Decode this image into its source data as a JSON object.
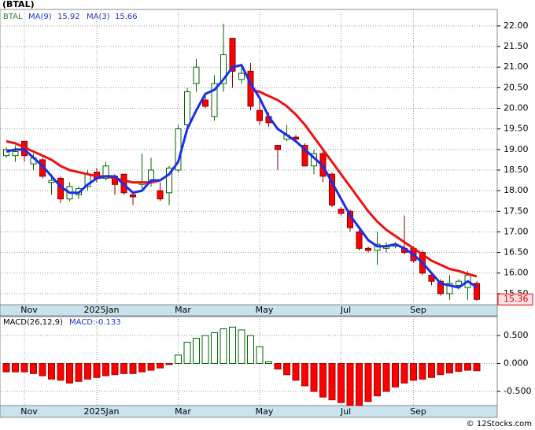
{
  "chart_data": [
    {
      "type": "candlestick",
      "title": "(BTAL)",
      "symbol": "BTAL",
      "categories": [
        null,
        null,
        "Nov",
        null,
        null,
        null,
        null,
        null,
        null,
        null,
        "2025Jan",
        null,
        null,
        null,
        null,
        null,
        null,
        null,
        null,
        "Mar",
        null,
        null,
        null,
        null,
        null,
        null,
        null,
        null,
        "May",
        null,
        null,
        null,
        null,
        null,
        null,
        null,
        null,
        "Jul",
        null,
        null,
        null,
        null,
        null,
        null,
        null,
        "Sep",
        null,
        null,
        null,
        null,
        null,
        null,
        null
      ],
      "open": [
        18.85,
        18.85,
        19.2,
        18.65,
        18.75,
        18.2,
        18.3,
        17.8,
        17.9,
        18.1,
        18.45,
        18.3,
        18.35,
        18.4,
        17.9,
        18.15,
        18.2,
        18.0,
        17.95,
        18.5,
        19.6,
        20.6,
        20.2,
        19.8,
        20.6,
        21.7,
        20.7,
        20.9,
        19.95,
        19.8,
        19.1,
        19.25,
        19.3,
        19.1,
        18.6,
        18.9,
        18.4,
        17.55,
        17.5,
        17.0,
        16.6,
        16.55,
        16.6,
        16.65,
        16.6,
        16.6,
        16.5,
        15.95,
        15.8,
        15.5,
        15.7,
        15.65,
        15.75
      ],
      "high": [
        19.05,
        19.1,
        19.2,
        18.9,
        18.8,
        18.4,
        18.35,
        18.2,
        18.1,
        18.5,
        18.55,
        18.7,
        18.4,
        18.4,
        17.95,
        18.9,
        18.8,
        18.2,
        18.6,
        19.6,
        20.5,
        21.2,
        20.3,
        20.8,
        22.05,
        21.7,
        21.0,
        21.1,
        20.2,
        19.9,
        19.1,
        19.6,
        19.35,
        19.15,
        19.0,
        18.95,
        18.45,
        17.6,
        17.55,
        17.05,
        16.65,
        17.0,
        16.75,
        16.75,
        17.4,
        16.65,
        16.55,
        16.0,
        15.85,
        15.95,
        15.85,
        16.05,
        15.8
      ],
      "low": [
        18.8,
        18.7,
        18.7,
        18.5,
        18.3,
        17.9,
        17.7,
        17.75,
        17.8,
        18.0,
        18.2,
        18.25,
        17.9,
        17.9,
        17.65,
        18.05,
        18.1,
        17.75,
        17.65,
        18.45,
        19.5,
        20.4,
        20.0,
        19.7,
        20.4,
        20.5,
        20.6,
        19.95,
        19.6,
        19.55,
        18.5,
        19.2,
        19.2,
        18.6,
        18.4,
        18.2,
        17.6,
        17.4,
        17.0,
        16.55,
        16.5,
        16.2,
        16.5,
        16.6,
        16.45,
        16.25,
        15.95,
        15.7,
        15.45,
        15.35,
        15.6,
        15.35,
        15.33
      ],
      "close": [
        19.0,
        18.95,
        18.85,
        18.8,
        18.35,
        18.25,
        17.8,
        18.1,
        18.05,
        18.4,
        18.3,
        18.6,
        18.15,
        17.95,
        17.85,
        18.2,
        18.5,
        17.8,
        18.55,
        19.5,
        20.4,
        21.0,
        20.05,
        20.6,
        21.3,
        20.9,
        20.85,
        20.05,
        19.7,
        19.65,
        19.0,
        19.35,
        19.25,
        18.6,
        18.9,
        18.35,
        17.65,
        17.45,
        17.1,
        16.6,
        16.55,
        16.7,
        16.65,
        16.7,
        16.5,
        16.3,
        16.0,
        15.8,
        15.5,
        15.75,
        15.8,
        15.95,
        15.36
      ],
      "up_color": "#006400",
      "down_color": "#ff0000",
      "series": [
        {
          "name": "MA(9)",
          "color": "#ee1111",
          "values": [
            19.2,
            19.15,
            19.05,
            18.95,
            18.85,
            18.75,
            18.6,
            18.5,
            18.45,
            18.4,
            18.35,
            18.35,
            18.3,
            18.25,
            18.2,
            18.2,
            18.2,
            18.25,
            null,
            null,
            null,
            null,
            null,
            null,
            null,
            null,
            null,
            20.45,
            20.4,
            20.3,
            20.2,
            20.05,
            19.85,
            19.6,
            19.3,
            19.0,
            18.7,
            18.4,
            18.1,
            17.8,
            17.5,
            17.25,
            17.05,
            16.9,
            16.75,
            16.6,
            16.45,
            16.3,
            16.2,
            16.1,
            16.05,
            15.98,
            15.92
          ]
        },
        {
          "name": "MA(3)",
          "color": "#1a2ee8",
          "values": [
            18.95,
            19.0,
            19.0,
            18.8,
            18.6,
            18.35,
            18.1,
            17.95,
            17.95,
            18.15,
            18.3,
            18.35,
            18.35,
            18.15,
            17.95,
            18.0,
            18.25,
            18.25,
            18.4,
            18.7,
            19.5,
            19.95,
            20.35,
            20.45,
            20.7,
            21.0,
            21.05,
            20.6,
            20.25,
            19.8,
            19.5,
            19.35,
            19.2,
            19.0,
            18.8,
            18.6,
            18.2,
            17.8,
            17.4,
            17.1,
            16.8,
            16.65,
            16.65,
            16.7,
            16.6,
            16.45,
            16.25,
            16.0,
            15.75,
            15.7,
            15.65,
            15.8,
            15.66
          ]
        }
      ],
      "ylim": [
        15.23,
        22.4
      ],
      "yticks": [
        {
          "value": 15.5,
          "label": "15.50"
        },
        {
          "value": 16,
          "label": "16.00"
        },
        {
          "value": 16.5,
          "label": "16.50"
        },
        {
          "value": 17,
          "label": "17.00"
        },
        {
          "value": 17.5,
          "label": "17.50"
        },
        {
          "value": 18,
          "label": "18.00"
        },
        {
          "value": 18.5,
          "label": "18.50"
        },
        {
          "value": 19,
          "label": "19.00"
        },
        {
          "value": 19.5,
          "label": "19.50"
        },
        {
          "value": 20,
          "label": "20.00"
        },
        {
          "value": 20.5,
          "label": "20.50"
        },
        {
          "value": 21,
          "label": "21.00"
        },
        {
          "value": 21.5,
          "label": "21.50"
        },
        {
          "value": 22,
          "label": "22.00"
        }
      ],
      "grid": true
    },
    {
      "type": "bar",
      "title": "MACD(26,12,9)",
      "macd_label": "MACD:-0.133",
      "values": [
        -0.15,
        -0.15,
        -0.15,
        -0.18,
        -0.22,
        -0.28,
        -0.3,
        -0.35,
        -0.32,
        -0.28,
        -0.25,
        -0.22,
        -0.2,
        -0.18,
        -0.18,
        -0.15,
        -0.12,
        -0.08,
        -0.02,
        0.15,
        0.38,
        0.45,
        0.5,
        0.55,
        0.62,
        0.65,
        0.6,
        0.5,
        0.3,
        0.03,
        -0.1,
        -0.2,
        -0.3,
        -0.4,
        -0.5,
        -0.6,
        -0.65,
        -0.7,
        -0.75,
        -0.75,
        -0.68,
        -0.58,
        -0.5,
        -0.42,
        -0.35,
        -0.3,
        -0.28,
        -0.25,
        -0.2,
        -0.17,
        -0.14,
        -0.12,
        -0.13
      ],
      "up_color": "#006400",
      "down_color": "#ff0000",
      "ylim": [
        -0.753,
        0.838
      ],
      "yticks": [
        {
          "value": -0.5,
          "label": "-0.500"
        },
        {
          "value": 0,
          "label": "0.000"
        },
        {
          "value": 0.5,
          "label": "0.500"
        }
      ],
      "grid": true
    }
  ],
  "footer": "© 12Stocks.com"
}
